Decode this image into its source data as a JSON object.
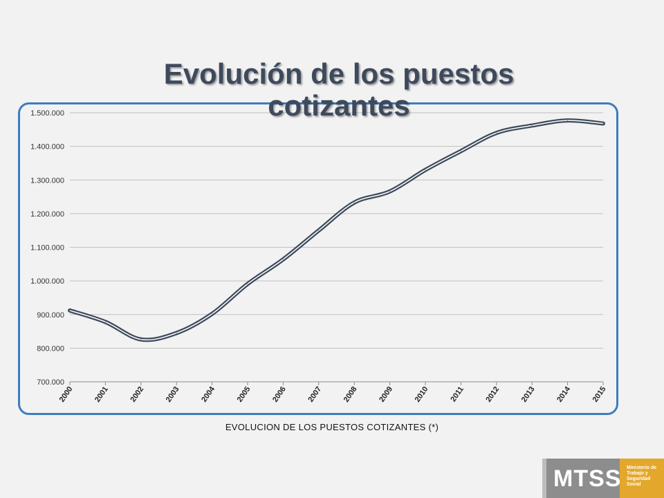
{
  "slide": {
    "title": "Evolución de los puestos cotizantes",
    "caption": "EVOLUCION DE LOS PUESTOS COTIZANTES (*)"
  },
  "logo": {
    "acronym": "MTSS",
    "subtitle": "Ministerio de Trabajo y Seguridad Social"
  },
  "colors": {
    "frame": "#3d7cbf",
    "line": "#3e4a5c",
    "accent": "#e3a72b"
  },
  "chart_data": {
    "type": "line",
    "title": "",
    "xlabel": "",
    "ylabel": "",
    "x": [
      "2000",
      "2001",
      "2002",
      "2003",
      "2004",
      "2005",
      "2006",
      "2007",
      "2008",
      "2009",
      "2010",
      "2011",
      "2012",
      "2013",
      "2014",
      "2015"
    ],
    "y_tick_labels": [
      "700.000",
      "800.000",
      "900.000",
      "1.000.000",
      "1.100.000",
      "1.200.000",
      "1.300.000",
      "1.400.000",
      "1.500.000"
    ],
    "y_ticks": [
      700000,
      800000,
      900000,
      1000000,
      1100000,
      1200000,
      1300000,
      1400000,
      1500000
    ],
    "ylim": [
      700000,
      1500000
    ],
    "grid": true,
    "legend": "none",
    "series": [
      {
        "values": [
          912000,
          878000,
          826000,
          845000,
          902000,
          991000,
          1064000,
          1150000,
          1233000,
          1266000,
          1330000,
          1386000,
          1440000,
          1462000,
          1477000,
          1468000
        ]
      }
    ]
  }
}
